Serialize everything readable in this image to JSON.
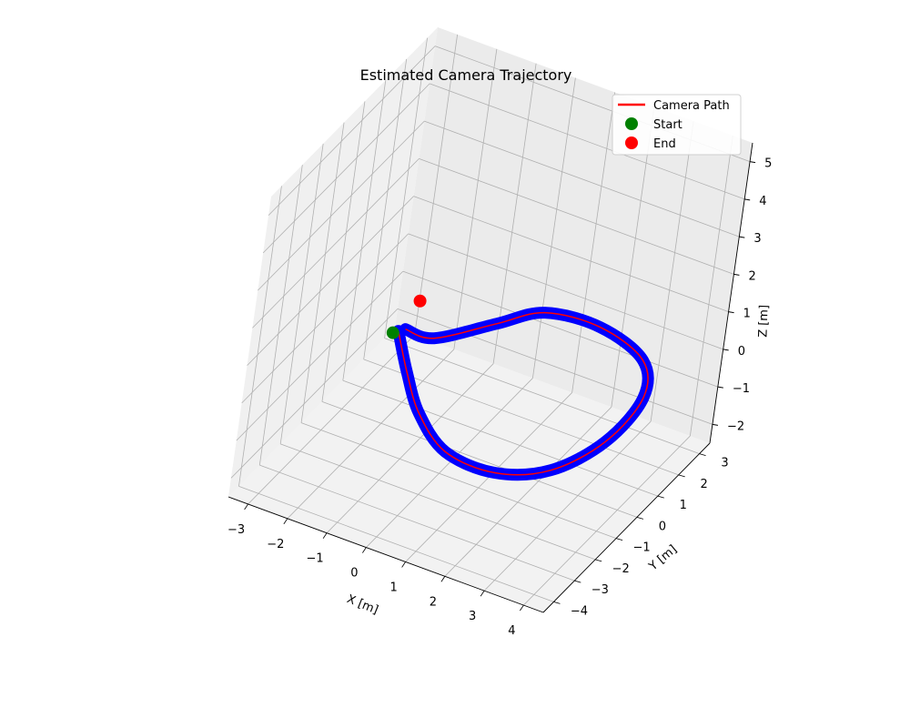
{
  "chart_data": {
    "type": "line",
    "projection": "3d",
    "title": "Estimated Camera Trajectory",
    "xlabel": "X [m]",
    "ylabel": "Y [m]",
    "zlabel": "Z [m]",
    "xlim": [
      -3.5,
      4.5
    ],
    "ylim": [
      -4.5,
      3.5
    ],
    "zlim": [
      -2.5,
      5.5
    ],
    "xticks": [
      "−3",
      "−2",
      "−1",
      "0",
      "1",
      "2",
      "3",
      "4"
    ],
    "yticks": [
      "−4",
      "−3",
      "−2",
      "−1",
      "0",
      "1",
      "2",
      "3"
    ],
    "zticks": [
      "−2",
      "−1",
      "0",
      "1",
      "2",
      "3",
      "4",
      "5"
    ],
    "grid": true,
    "legend_position": "top-right",
    "series": [
      {
        "name": "Camera Path",
        "color": "#ff0000",
        "type": "line"
      },
      {
        "name": "Start",
        "color": "#008000",
        "type": "scatter"
      },
      {
        "name": "End",
        "color": "#ff0000",
        "type": "scatter"
      }
    ],
    "trajectory": {
      "color": "#0000ff",
      "points": [
        [
          -1.9,
          0.0,
          0.0
        ],
        [
          -1.0,
          -1.3,
          0.0
        ],
        [
          0.0,
          -2.6,
          0.0
        ],
        [
          1.2,
          -3.6,
          0.0
        ],
        [
          2.5,
          -3.7,
          0.0
        ],
        [
          3.5,
          -2.9,
          0.0
        ],
        [
          4.0,
          -1.2,
          0.0
        ],
        [
          3.9,
          0.8,
          0.0
        ],
        [
          3.2,
          2.1,
          0.0
        ],
        [
          1.8,
          2.7,
          0.0
        ],
        [
          0.5,
          2.5,
          0.0
        ],
        [
          -0.2,
          1.5,
          0.0
        ],
        [
          -1.1,
          0.2,
          0.0
        ],
        [
          -1.8,
          0.15,
          0.0
        ]
      ]
    },
    "start_point": [
      -1.9,
      0.0,
      0.0
    ],
    "end_point": [
      -1.8,
      0.15,
      0.0
    ]
  }
}
